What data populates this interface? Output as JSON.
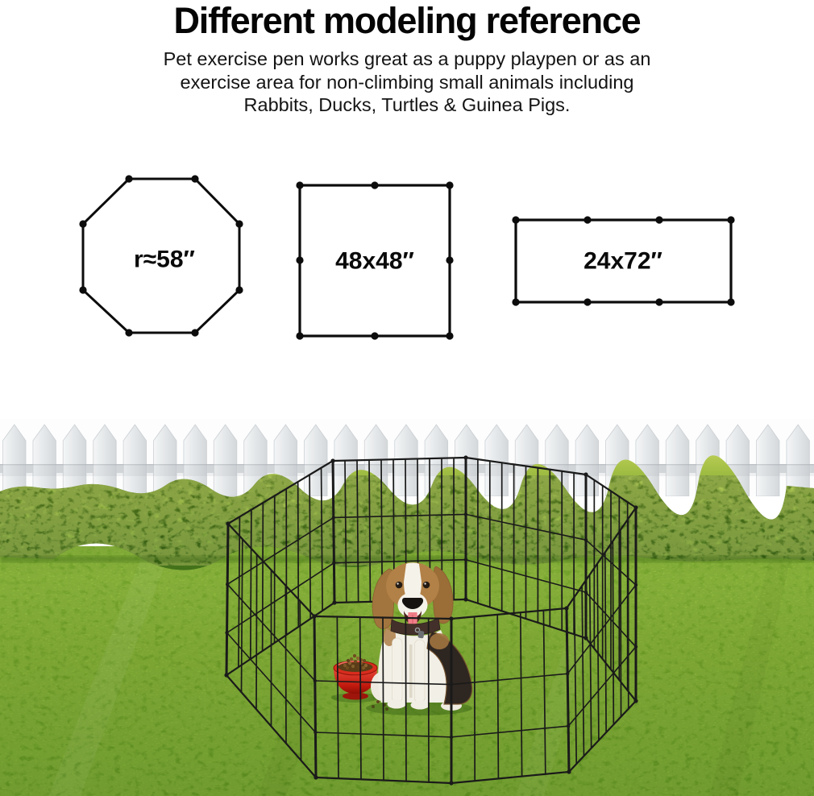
{
  "header": {
    "title": "Different modeling reference",
    "description_lines": [
      "Pet exercise pen works great as a puppy playpen or as an",
      "exercise area for non-climbing small animals including",
      "Rabbits, Ducks, Turtles & Guinea Pigs."
    ]
  },
  "diagrams": {
    "octagon_label": "r≈58″",
    "square_label": "48x48″",
    "rectangle_label": "24x72″"
  },
  "scene": {
    "subject": "Beagle dog sitting in a black wire 8-panel exercise pen on a lawn with a red bowl of kibble; green hedge and white picket fence behind",
    "colors": {
      "pen_wire": "#1a1a1a",
      "grass_light": "#8dbc39",
      "grass_dark": "#679826",
      "hedge_light": "#b4ca51",
      "hedge_dark": "#3f6b19",
      "fence_picket": "#e4e7e9",
      "bowl_red": "#d02a1c",
      "dog_tan": "#b28147",
      "dog_white": "#f3f0e8",
      "dog_saddle": "#2e2620"
    }
  }
}
